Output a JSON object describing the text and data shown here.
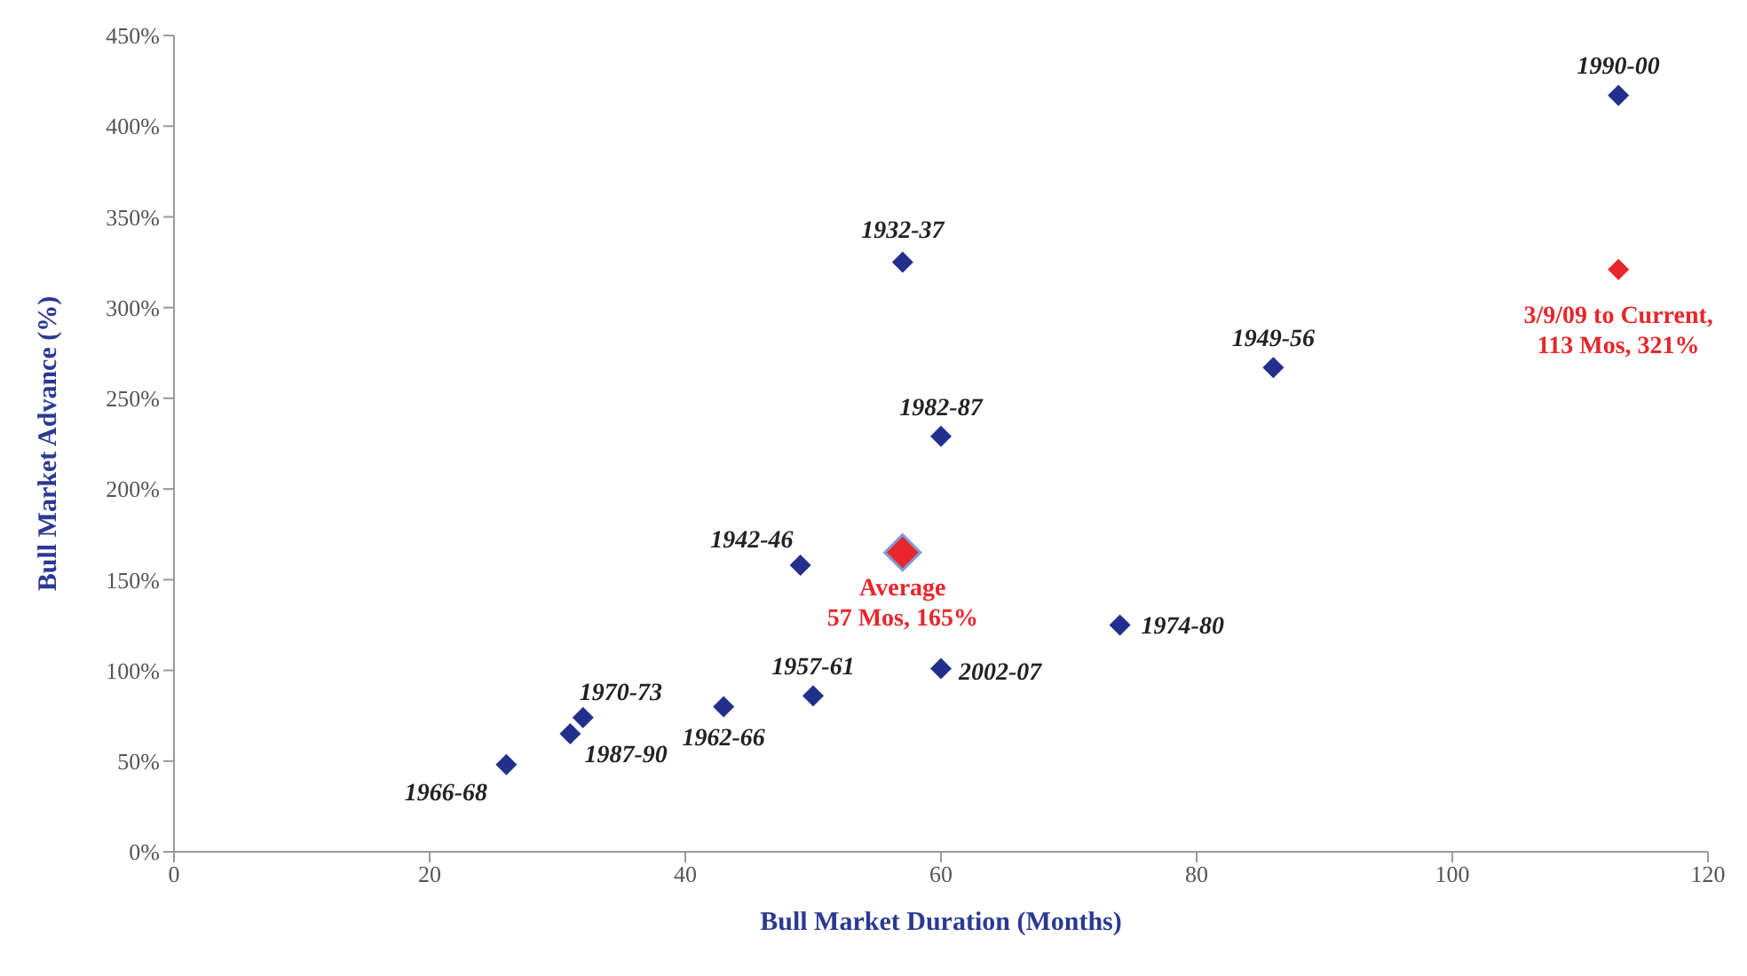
{
  "chart_data": {
    "type": "scatter",
    "xlabel": "Bull Market Duration (Months)",
    "ylabel": "Bull Market Advance (%)",
    "xlim": [
      0,
      120
    ],
    "xticks": [
      0,
      20,
      40,
      60,
      80,
      100,
      120
    ],
    "ylim": [
      0,
      450
    ],
    "yticks": [
      {
        "value": 0,
        "label": "0%"
      },
      {
        "value": 50,
        "label": "50%"
      },
      {
        "value": 100,
        "label": "100%"
      },
      {
        "value": 150,
        "label": "150%"
      },
      {
        "value": 200,
        "label": "200%"
      },
      {
        "value": 250,
        "label": "250%"
      },
      {
        "value": 300,
        "label": "300%"
      },
      {
        "value": 350,
        "label": "350%"
      },
      {
        "value": 400,
        "label": "400%"
      },
      {
        "value": 450,
        "label": "450%"
      }
    ],
    "grid": false,
    "legend": false,
    "marker": "diamond",
    "series": [
      {
        "color": "#232f8c",
        "x": [
          26,
          31,
          32,
          43,
          50,
          49,
          57,
          60,
          60,
          74,
          86,
          113
        ],
        "values": [
          48,
          65,
          74,
          80,
          86,
          158,
          325,
          229,
          101,
          125,
          267,
          417
        ],
        "value_labels": [
          "1966-68",
          "1987-90",
          "1970-73",
          "1962-66",
          "1957-61",
          "1942-46",
          "1932-37",
          "1982-87",
          "2002-07",
          "1974-80",
          "1949-56",
          "1990-00"
        ]
      },
      {
        "color": "#e8262b",
        "x": [
          57
        ],
        "values": [
          165
        ],
        "value_labels": [
          "Average\n57 Mos, 165%"
        ]
      },
      {
        "color": "#e8262b",
        "x": [
          113
        ],
        "values": [
          321
        ],
        "value_labels": [
          "3/9/09 to Current,\n113 Mos, 321%"
        ]
      }
    ]
  }
}
